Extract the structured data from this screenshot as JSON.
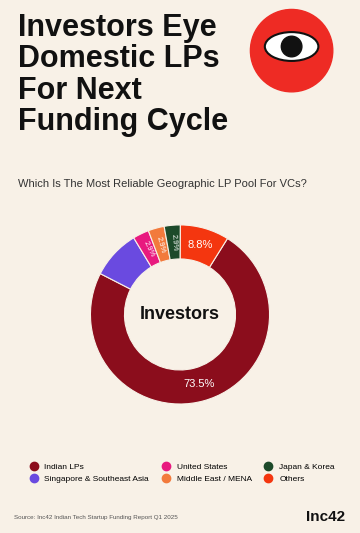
{
  "chart_data": {
    "type": "pie",
    "title": "Investors Eye Domestic LPs For Next Funding Cycle",
    "subtitle": "Which Is The Most Reliable Geographic LP Pool For VCs?",
    "center_label": "Investors",
    "categories": [
      "Indian LPs",
      "Singapore & Southeast Asia",
      "United States",
      "Middle East / MENA",
      "Japan & Korea",
      "Others"
    ],
    "values": [
      73.5,
      8.8,
      2.9,
      2.9,
      2.9,
      8.8
    ],
    "value_labels": [
      "73.5%",
      null,
      "2.9%",
      "2.9%",
      "2.9%",
      "8.8%"
    ],
    "colors": [
      "#8b0d1c",
      "#6a4ae0",
      "#e8197f",
      "#f27a3c",
      "#1d4a2a",
      "#f4360f"
    ],
    "data_labels": true,
    "legend": "lower center",
    "source": "Source: Inc42 Indian Tech Startup Funding Report Q1 2025",
    "brand": "Inc42"
  }
}
